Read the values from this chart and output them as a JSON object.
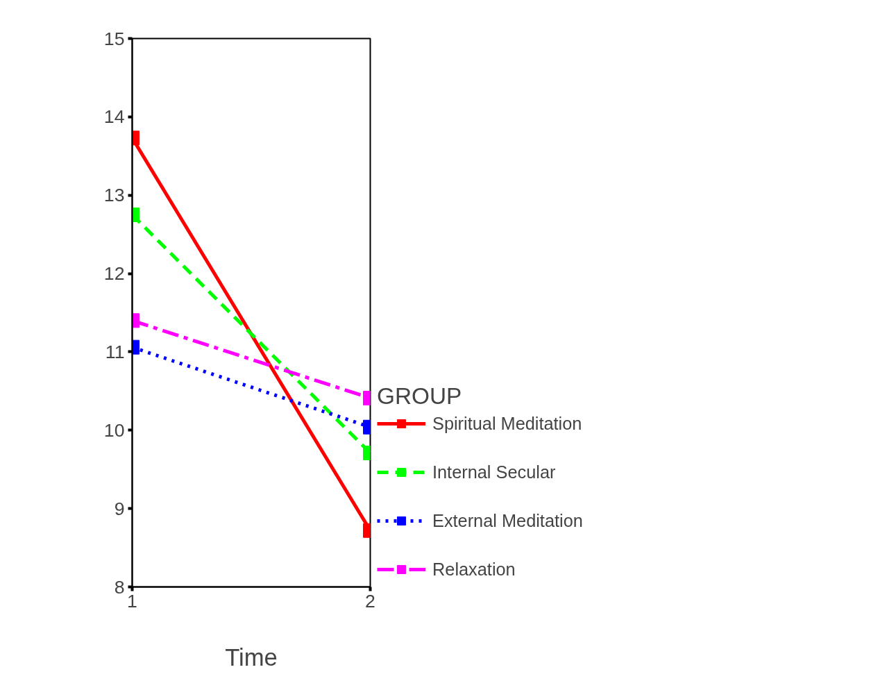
{
  "chart_data": {
    "type": "line",
    "xlabel": "Time",
    "legend_title": "GROUP",
    "x": [
      1,
      2
    ],
    "xlim": [
      1,
      2
    ],
    "xticks": [
      1,
      2
    ],
    "ylim": [
      8,
      15
    ],
    "yticks": [
      8,
      9,
      10,
      11,
      12,
      13,
      14,
      15
    ],
    "grid": false,
    "legend": "right",
    "marker": "square",
    "series": [
      {
        "name": "Spiritual Meditation",
        "color": "#ff0000",
        "line_style": "solid",
        "values": [
          13.73,
          8.72
        ]
      },
      {
        "name": "Internal Secular",
        "color": "#00ff00",
        "line_style": "dashed",
        "values": [
          12.75,
          9.71
        ]
      },
      {
        "name": "External Meditation",
        "color": "#0000ff",
        "line_style": "dotted",
        "values": [
          11.06,
          10.04
        ]
      },
      {
        "name": "Relaxation",
        "color": "#ff00ff",
        "line_style": "dashdot",
        "values": [
          11.4,
          10.41
        ]
      }
    ]
  }
}
